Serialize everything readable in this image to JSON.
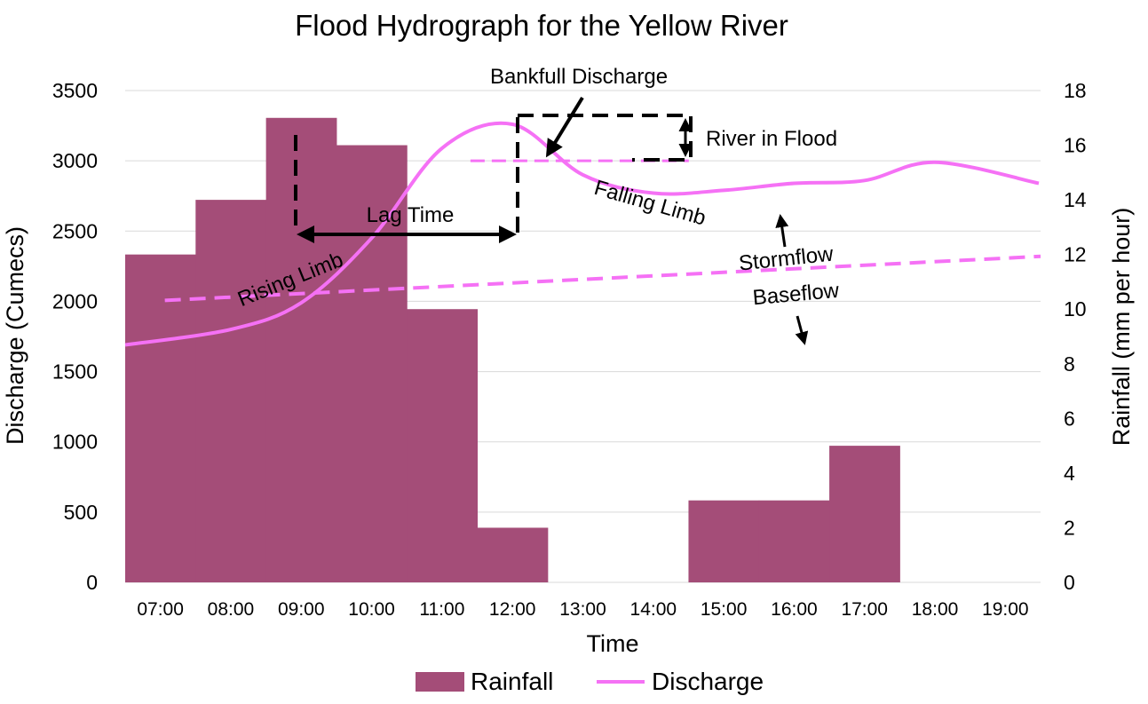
{
  "chart_data": {
    "type": "bar+line",
    "title": "Flood Hydrograph for the Yellow River",
    "xlabel": "Time",
    "ylabel_left": "Discharge (Cumecs)",
    "ylabel_right": "Rainfall (mm per hour)",
    "categories": [
      "07:00",
      "08:00",
      "09:00",
      "10:00",
      "11:00",
      "12:00",
      "13:00",
      "14:00",
      "15:00",
      "16:00",
      "17:00",
      "18:00",
      "19:00"
    ],
    "y_left_lim": [
      0,
      3500
    ],
    "y_left_ticks": [
      "0",
      "500",
      "1000",
      "1500",
      "2000",
      "2500",
      "3000",
      "3500"
    ],
    "y_right_lim": [
      0,
      18
    ],
    "y_right_ticks": [
      "0",
      "2",
      "4",
      "6",
      "8",
      "10",
      "12",
      "14",
      "16",
      "18"
    ],
    "grid": true,
    "legend_position": "bottom",
    "series": [
      {
        "name": "Rainfall",
        "kind": "bar",
        "axis": "right",
        "color": "#a44d78",
        "values": [
          12,
          14,
          17,
          16,
          10,
          2,
          0,
          0,
          3,
          3,
          5,
          0,
          0
        ]
      },
      {
        "name": "Discharge",
        "kind": "line",
        "axis": "left",
        "color": "#f571f5",
        "values": [
          1690,
          1800,
          1990,
          2450,
          3090,
          3260,
          2900,
          2770,
          2790,
          2840,
          2860,
          2990,
          2840
        ]
      }
    ],
    "reference_lines": {
      "bankfull_discharge": 3000,
      "baseflow_start": 1880,
      "baseflow_end": 2320
    },
    "annotations": {
      "bankfull": "Bankfull Discharge",
      "river_in_flood": "River in Flood",
      "lag_time": "Lag Time",
      "rising_limb": "Rising Limb",
      "falling_limb": "Falling Limb",
      "stormflow": "Stormflow",
      "baseflow": "Baseflow"
    }
  }
}
